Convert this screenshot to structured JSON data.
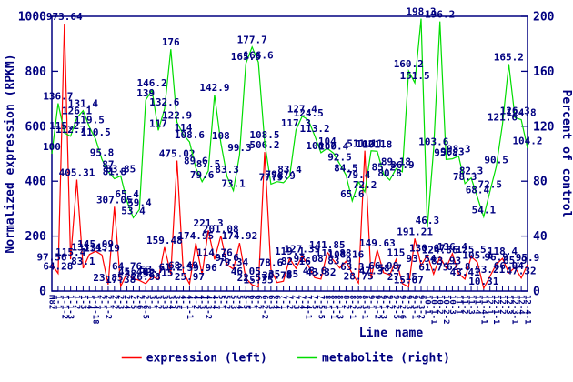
{
  "chart_data": {
    "type": "line",
    "title": "",
    "x_axis": {
      "title": "Line name",
      "labels": [
        "M82",
        "1-1",
        "1-1-2",
        "1-1-3",
        "1-2",
        "1-3",
        "1-4",
        "1-4-18",
        "2-1",
        "2-1-2",
        "2-2",
        "2-3",
        "2-4",
        "2-5",
        "2-6",
        "2-6-5",
        "3-1",
        "3-2",
        "3-3",
        "3-4",
        "3-5",
        "4-1",
        "4-1-1",
        "4-2",
        "4-3",
        "4-3-2",
        "4-4",
        "5-1",
        "5-2",
        "5-3",
        "5-4",
        "5-5",
        "6-1",
        "6-2",
        "6-2-2",
        "6-3",
        "6-4",
        "7-1",
        "7-2",
        "7-3",
        "7-4",
        "7-4-1",
        "7-5",
        "7-5-5",
        "8-1",
        "8-1-1",
        "8-1-3",
        "8-2",
        "8-2-1",
        "8-3",
        "8-3-1",
        "9-1",
        "9-1-2",
        "9-1-3",
        "9-2",
        "9-2-5",
        "9-2-6",
        "9-3",
        "9-3-1",
        "9-3-2",
        "10-1",
        "10-1-1",
        "10-2",
        "10-2-2",
        "10-3",
        "11-1",
        "11-2",
        "11-3",
        "11-4",
        "11-4-1",
        "12-1",
        "12-1-1",
        "12-2",
        "12-3",
        "12-3-1",
        "12-4",
        "12-4-1"
      ]
    },
    "left_axis": {
      "title": "Normalized expression (RPKM)",
      "min": 0,
      "max": 1000,
      "ticks": [
        0,
        200,
        400,
        600,
        800,
        1000
      ]
    },
    "right_axis": {
      "title": "Percent of control",
      "min": 0,
      "max": 200,
      "ticks": [
        0,
        40,
        80,
        120,
        160,
        200
      ]
    },
    "grid": false,
    "legend_position": "bottom-center",
    "series": [
      {
        "name": "expression (left)",
        "axis": "left",
        "color": "#ff0000",
        "values": [
          97.56,
          64.28,
          973.64,
          115.4,
          405.31,
          83.1,
          133.45,
          145.09,
          131.19,
          23.85,
          307.05,
          17.38,
          64.76,
          45.46,
          38.58,
          26.98,
          53.7,
          42.15,
          159.48,
          61.2,
          475.02,
          68.49,
          25.97,
          174.95,
          59.96,
          221.3,
          114.76,
          201.08,
          95.6,
          79.34,
          174.92,
          46.05,
          22.57,
          15.35,
          506.2,
          78.6,
          30.78,
          35.85,
          119.1,
          82.16,
          127.39,
          92.08,
          48.6,
          43.32,
          141.85,
          111.88,
          83.9,
          108.16,
          63.3,
          28.75,
          511.11,
          47.3,
          149.63,
          66.98,
          58.7,
          115,
          27.15,
          15.67,
          191.21,
          93.54,
          130.67,
          61.75,
          124.86,
          83.93,
          136.4,
          62.8,
          43.41,
          125.5,
          105.1,
          10.31,
          53.21,
          96.9,
          118.4,
          66.04,
          85.9,
          47.32,
          95.9
        ]
      },
      {
        "name": "metabolite (right)",
        "axis": "right",
        "color": "#00dd00",
        "values": [
          100,
          136.7,
          115.2,
          112.7,
          126.1,
          131.4,
          119.5,
          110.5,
          95.8,
          87,
          81.8,
          83.85,
          65.4,
          53.4,
          59.4,
          139,
          146.2,
          117,
          132.6,
          176,
          122.9,
          114,
          108.6,
          89.6,
          79.6,
          87.5,
          142.9,
          108,
          83.3,
          73.1,
          99.3,
          165.5,
          177.7,
          166.6,
          108.5,
          77.9,
          79.7,
          78.9,
          83.4,
          117.3,
          127.4,
          124.5,
          113.2,
          100.7,
          104,
          100.4,
          92.5,
          84.5,
          65.6,
          79.4,
          72.2,
          102.1,
          101.8,
          85.2,
          80.8,
          89.18,
          86.9,
          160.2,
          151.5,
          198.3,
          46.3,
          103.6,
          196.2,
          95.8,
          96.3,
          98.3,
          78.3,
          82.3,
          68.4,
          54.1,
          72.5,
          90.5,
          121.6,
          165.2,
          126.3,
          124.8,
          104.2
        ]
      }
    ],
    "point_labels_visible": true
  },
  "legend": {
    "items": [
      {
        "label": "expression (left)",
        "color": "#ff0000"
      },
      {
        "label": "metabolite (right)",
        "color": "#00dd00"
      }
    ]
  },
  "colors": {
    "axis": "#000080",
    "text": "#000080",
    "background": "#ffffff"
  }
}
